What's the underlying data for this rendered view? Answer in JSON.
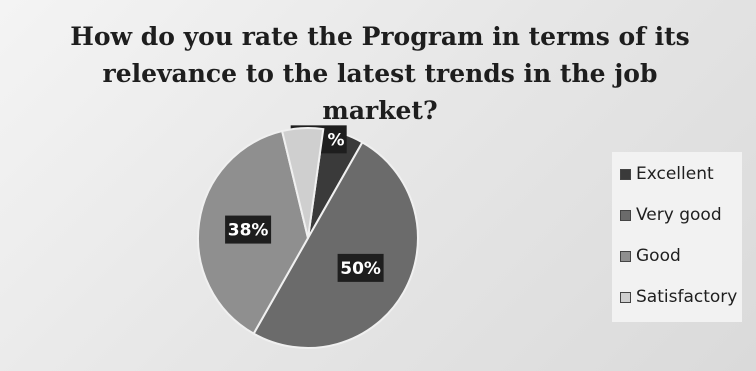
{
  "chart_data": {
    "type": "pie",
    "title": "How do you rate the Program in terms of its relevance to the latest trends in the job market?",
    "categories": [
      "Excellent",
      "Very good",
      "Good",
      "Satisfactory"
    ],
    "values": [
      6,
      50,
      38,
      6
    ],
    "data_labels": [
      "6% %",
      "50%",
      "38%",
      ""
    ],
    "colors": [
      "#3a3a3a",
      "#6b6b6b",
      "#8f8f8f",
      "#cfcfcf"
    ],
    "legend_position": "right"
  },
  "title_line1": "How do you rate the Program in terms of its",
  "title_line2": "relevance to the latest trends in the job market?"
}
